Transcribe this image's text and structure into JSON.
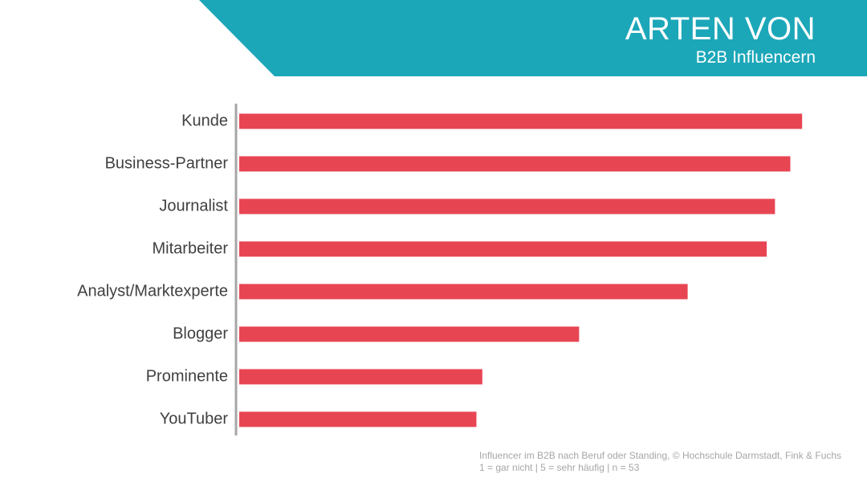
{
  "header": {
    "title": "ARTEN VON",
    "subtitle": "B2B Influencern"
  },
  "colors": {
    "banner": "#1ca7b9",
    "bar": "#e84553",
    "axis": "#a6a6a6",
    "label": "#404040",
    "note": "#a6a6a6"
  },
  "chart_data": {
    "type": "bar",
    "orientation": "horizontal",
    "categories": [
      "Kunde",
      "Business-Partner",
      "Journalist",
      "Mitarbeiter",
      "Analyst/Marktexperte",
      "Blogger",
      "Prominente",
      "YouTuber"
    ],
    "values": [
      4.77,
      4.67,
      4.54,
      4.47,
      3.8,
      2.88,
      2.06,
      2.01
    ],
    "xlim": [
      0,
      5
    ],
    "grid": false,
    "legend": "none"
  },
  "source": {
    "line1": "Influencer im B2B nach Beruf oder Standing, © Hochschule Darmstadt, Fink & Fuchs",
    "line2": "1 = gar nicht | 5 = sehr häufig | n = 53"
  }
}
